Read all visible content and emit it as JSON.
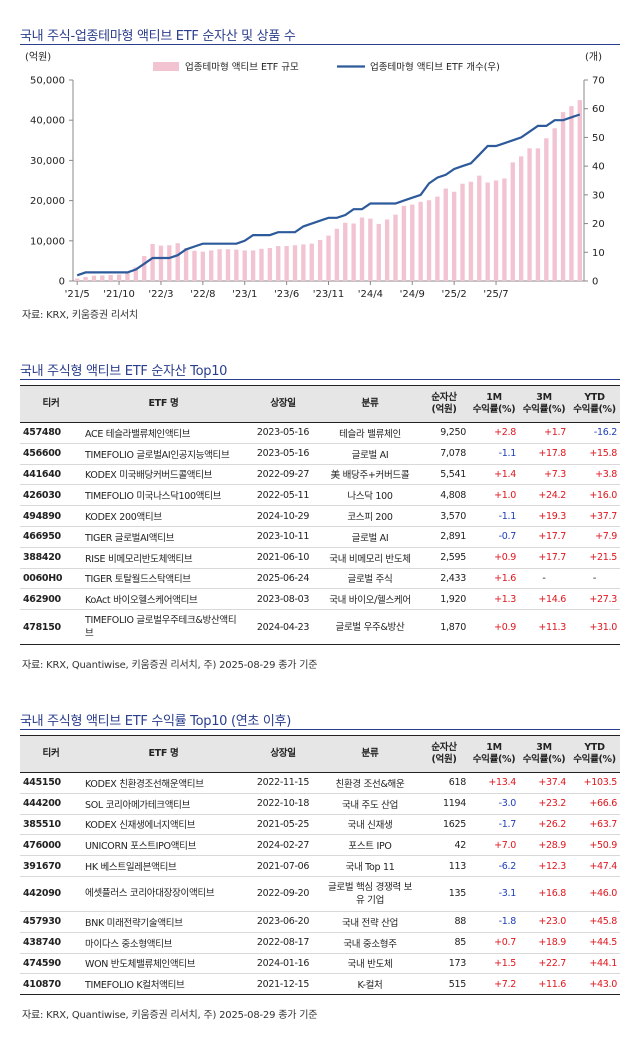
{
  "chart_section": {
    "title": "국내 주식-업종테마형 액티브 ETF 순자산 및 상품 수",
    "source": "자료: KRX, 키움증권 리서치"
  },
  "chart_data": {
    "type": "bar",
    "title": "",
    "y_left_unit": "(억원)",
    "y_right_unit": "(개)",
    "ylim": [
      0,
      50000
    ],
    "y2lim": [
      0,
      70
    ],
    "yticks": [
      "0",
      "10,000",
      "20,000",
      "30,000",
      "40,000",
      "50,000"
    ],
    "y2ticks": [
      "0",
      "10",
      "20",
      "30",
      "40",
      "50",
      "60",
      "70"
    ],
    "xtick_labels": [
      "'21/5",
      "'21/10",
      "'22/3",
      "'22/8",
      "'23/1",
      "'23/6",
      "'23/11",
      "'24/4",
      "'24/9",
      "'25/2",
      "'25/7"
    ],
    "legend_position": "top",
    "colors": {
      "bar": "#f2c4d2",
      "line": "#2d5a9a"
    },
    "series": [
      {
        "name": "업종테마형 액티브 ETF 규모",
        "axis": "left",
        "values": [
          600,
          1000,
          1300,
          1400,
          1500,
          1600,
          2000,
          3400,
          6200,
          9200,
          8800,
          8900,
          9400,
          8200,
          7500,
          7300,
          7600,
          7900,
          7900,
          7800,
          7600,
          7600,
          8000,
          8200,
          8700,
          8700,
          8900,
          9100,
          9300,
          10200,
          11300,
          13000,
          14500,
          14300,
          15800,
          15500,
          14200,
          15300,
          16500,
          18700,
          19000,
          19700,
          20100,
          21000,
          23000,
          22200,
          24200,
          24700,
          26200,
          24500,
          25000,
          25500,
          29500,
          31000,
          33000,
          33000,
          35500,
          38000,
          42000,
          43500,
          45000
        ]
      },
      {
        "name": "업종테마형 액티브 ETF 개수(우)",
        "axis": "right",
        "values": [
          2,
          3,
          3,
          3,
          3,
          3,
          3,
          4,
          6,
          8,
          8,
          8,
          9,
          11,
          12,
          13,
          13,
          13,
          13,
          13,
          14,
          16,
          16,
          16,
          17,
          17,
          17,
          19,
          20,
          21,
          22,
          22,
          23,
          25,
          25,
          27,
          27,
          27,
          27,
          28,
          29,
          30,
          34,
          36,
          37,
          39,
          40,
          41,
          44,
          47,
          47,
          48,
          49,
          50,
          52,
          54,
          54,
          56,
          56,
          57,
          58
        ]
      }
    ]
  },
  "table1": {
    "title": "국내 주식형 액티브 ETF 순자산 Top10",
    "source": "자료: KRX, Quantiwise, 키움증권 리서치, 주) 2025-08-29 종가 기준",
    "headers": [
      "티커",
      "ETF 명",
      "상장일",
      "분류",
      "순자산",
      "(억원)",
      "1M",
      "수익률(%)",
      "3M",
      "수익률(%)",
      "YTD",
      "수익률(%)"
    ],
    "rows": [
      {
        "ticker": "457480",
        "name": "ACE 테슬라밸류체인액티브",
        "date": "2023-05-16",
        "cat": "테슬라 밸류체인",
        "aum": "9,250",
        "m1": "+2.8",
        "m3": "+1.7",
        "ytd": "-16.2"
      },
      {
        "ticker": "456600",
        "name": "TIMEFOLIO 글로벌AI인공지능액티브",
        "date": "2023-05-16",
        "cat": "글로벌 AI",
        "aum": "7,078",
        "m1": "-1.1",
        "m3": "+17.8",
        "ytd": "+15.8"
      },
      {
        "ticker": "441640",
        "name": "KODEX 미국배당커버드콜액티브",
        "date": "2022-09-27",
        "cat": "美 배당주+커버드콜",
        "aum": "5,541",
        "m1": "+1.4",
        "m3": "+7.3",
        "ytd": "+3.8"
      },
      {
        "ticker": "426030",
        "name": "TIMEFOLIO 미국나스닥100액티브",
        "date": "2022-05-11",
        "cat": "나스닥 100",
        "aum": "4,808",
        "m1": "+1.0",
        "m3": "+24.2",
        "ytd": "+16.0"
      },
      {
        "ticker": "494890",
        "name": "KODEX 200액티브",
        "date": "2024-10-29",
        "cat": "코스피 200",
        "aum": "3,570",
        "m1": "-1.1",
        "m3": "+19.3",
        "ytd": "+37.7"
      },
      {
        "ticker": "466950",
        "name": "TIGER 글로벌AI액티브",
        "date": "2023-10-11",
        "cat": "글로벌 AI",
        "aum": "2,891",
        "m1": "-0.7",
        "m3": "+17.7",
        "ytd": "+7.9"
      },
      {
        "ticker": "388420",
        "name": "RISE 비메모리반도체액티브",
        "date": "2021-06-10",
        "cat": "국내 비메모리 반도체",
        "aum": "2,595",
        "m1": "+0.9",
        "m3": "+17.7",
        "ytd": "+21.5"
      },
      {
        "ticker": "0060H0",
        "name": "TIGER 토탈월드스탁액티브",
        "date": "2025-06-24",
        "cat": "글로벌 주식",
        "aum": "2,433",
        "m1": "+1.6",
        "m3": "-",
        "ytd": "-"
      },
      {
        "ticker": "462900",
        "name": "KoAct 바이오헬스케어액티브",
        "date": "2023-08-03",
        "cat": "국내 바이오/헬스케어",
        "aum": "1,920",
        "m1": "+1.3",
        "m3": "+14.6",
        "ytd": "+27.3"
      },
      {
        "ticker": "478150",
        "name": "TIMEFOLIO 글로벌우주테크&방산액티브",
        "date": "2024-04-23",
        "cat": "글로벌 우주&방산",
        "aum": "1,870",
        "m1": "+0.9",
        "m3": "+11.3",
        "ytd": "+31.0"
      }
    ]
  },
  "table2": {
    "title": "국내 주식형 액티브 ETF 수익률 Top10 (연초 이후)",
    "source": "자료: KRX, Quantiwise, 키움증권 리서치, 주) 2025-08-29 종가 기준",
    "headers": [
      "티커",
      "ETF 명",
      "상장일",
      "분류",
      "순자산",
      "(억원)",
      "1M",
      "수익률(%)",
      "3M",
      "수익률(%)",
      "YTD",
      "수익률(%)"
    ],
    "rows": [
      {
        "ticker": "445150",
        "name": "KODEX 친환경조선해운액티브",
        "date": "2022-11-15",
        "cat": "친환경 조선&해운",
        "aum": "618",
        "m1": "+13.4",
        "m3": "+37.4",
        "ytd": "+103.5"
      },
      {
        "ticker": "444200",
        "name": "SOL 코리아메가테크액티브",
        "date": "2022-10-18",
        "cat": "국내 주도 산업",
        "aum": "1194",
        "m1": "-3.0",
        "m3": "+23.2",
        "ytd": "+66.6"
      },
      {
        "ticker": "385510",
        "name": "KODEX 신재생에너지액티브",
        "date": "2021-05-25",
        "cat": "국내 신재생",
        "aum": "1625",
        "m1": "-1.7",
        "m3": "+26.2",
        "ytd": "+63.7"
      },
      {
        "ticker": "476000",
        "name": "UNICORN 포스트IPO액티브",
        "date": "2024-02-27",
        "cat": "포스트 IPO",
        "aum": "42",
        "m1": "+7.0",
        "m3": "+28.9",
        "ytd": "+50.9"
      },
      {
        "ticker": "391670",
        "name": "HK 베스트일레븐액티브",
        "date": "2021-07-06",
        "cat": "국내 Top 11",
        "aum": "113",
        "m1": "-6.2",
        "m3": "+12.3",
        "ytd": "+47.4"
      },
      {
        "ticker": "442090",
        "name": "에셋플러스 코리아대장장이액티브",
        "date": "2022-09-20",
        "cat": "글로벌 핵심 경쟁력 보유 기업",
        "aum": "135",
        "m1": "-3.1",
        "m3": "+16.8",
        "ytd": "+46.0"
      },
      {
        "ticker": "457930",
        "name": "BNK 미래전략기술액티브",
        "date": "2023-06-20",
        "cat": "국내 전략 산업",
        "aum": "88",
        "m1": "-1.8",
        "m3": "+23.0",
        "ytd": "+45.8"
      },
      {
        "ticker": "438740",
        "name": "마이다스 중소형액티브",
        "date": "2022-08-17",
        "cat": "국내 중소형주",
        "aum": "85",
        "m1": "+0.7",
        "m3": "+18.9",
        "ytd": "+44.5"
      },
      {
        "ticker": "474590",
        "name": "WON 반도체밸류체인액티브",
        "date": "2024-01-16",
        "cat": "국내 반도체",
        "aum": "173",
        "m1": "+1.5",
        "m3": "+22.7",
        "ytd": "+44.1"
      },
      {
        "ticker": "410870",
        "name": "TIMEFOLIO K컬처액티브",
        "date": "2021-12-15",
        "cat": "K-컬처",
        "aum": "515",
        "m1": "+7.2",
        "m3": "+11.6",
        "ytd": "+43.0"
      }
    ]
  }
}
